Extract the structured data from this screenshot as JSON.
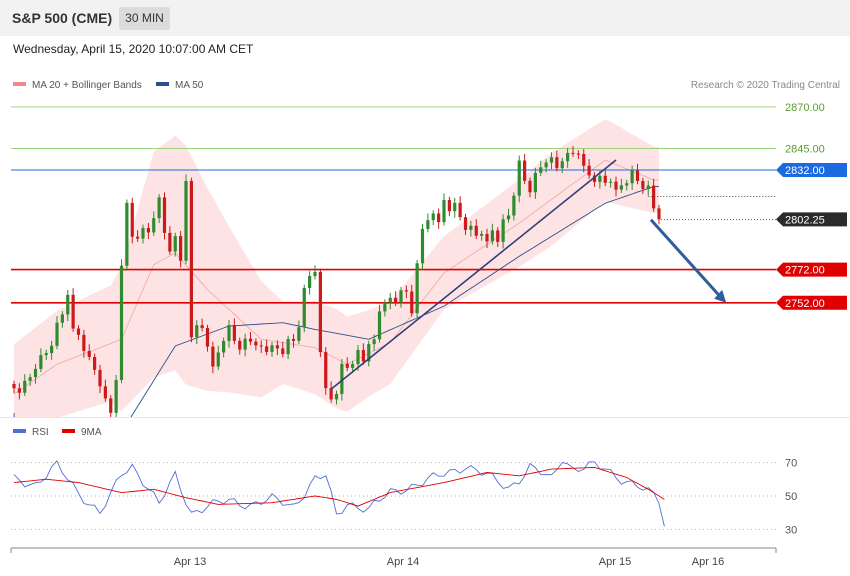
{
  "header": {
    "symbol": "S&P 500 (CME)",
    "timeframe": "30 MIN",
    "datetime": "Wednesday, April 15, 2020 10:07:00 AM CET",
    "copyright": "Research © 2020 Trading Central"
  },
  "colors": {
    "bollinger": "#f08a8a",
    "ma50": "#2b4f8c",
    "rsi": "#4f6fd6",
    "rsi_ma": "#e00000",
    "support": "#e00000",
    "resistance": "#8fcf6a",
    "pivot": "#1b6be0",
    "arrow": "#2e5d9e",
    "candle_up": "#2e8b2e",
    "candle_down": "#cc1a1a"
  },
  "chart_data": [
    {
      "type": "candlestick",
      "name": "price",
      "legend": [
        "MA 20 + Bollinger Bands",
        "MA 50"
      ],
      "ylim": [
        2620,
        2905
      ],
      "x_ticks": [
        "Apr 13",
        "Apr 14",
        "Apr 15",
        "Apr 16"
      ],
      "levels": [
        {
          "value": 2870.0,
          "label": "2870.00",
          "kind": "resistance"
        },
        {
          "value": 2845.0,
          "label": "2845.00",
          "kind": "resistance"
        },
        {
          "value": 2832.0,
          "label": "2832.00",
          "kind": "pivot"
        },
        {
          "value": 2772.0,
          "label": "2772.00",
          "kind": "support"
        },
        {
          "value": 2752.0,
          "label": "2752.00",
          "kind": "support"
        }
      ],
      "last_price": {
        "value": 2802.25,
        "label": "2802.25"
      },
      "bar_start": 0,
      "bar_count": 134,
      "trendline": [
        [
          59,
          2700
        ],
        [
          112,
          2838
        ]
      ],
      "forecast_arrow": [
        [
          118.5,
          2802
        ],
        [
          132.5,
          2752
        ]
      ],
      "close": [
        2700.5,
        2697.8,
        2705.0,
        2707.2,
        2712.2,
        2720.5,
        2721.7,
        2726.1,
        2740.0,
        2745.0,
        2756.8,
        2736.5,
        2732.7,
        2723.0,
        2719.4,
        2711.6,
        2701.7,
        2694.4,
        2685.7,
        2705.5,
        2774.3,
        2812.2,
        2791.8,
        2790.7,
        2797.1,
        2794.4,
        2803.0,
        2815.5,
        2794.1,
        2782.9,
        2792.2,
        2777.3,
        2825.4,
        2731.2,
        2738.5,
        2736.8,
        2725.6,
        2713.6,
        2722.1,
        2729.0,
        2738.6,
        2729.1,
        2723.8,
        2730.4,
        2728.6,
        2726.3,
        2725.8,
        2722.4,
        2726.4,
        2724.5,
        2721.1,
        2730.2,
        2729.1,
        2737.3,
        2760.9,
        2768.1,
        2770.6,
        2722.3,
        2700.6,
        2693.8,
        2697.1,
        2715.2,
        2712.8,
        2715.1,
        2723.6,
        2716.7,
        2727.1,
        2730.0,
        2746.8,
        2752.1,
        2755.0,
        2752.1,
        2759.5,
        2758.8,
        2745.7,
        2775.8,
        2796.5,
        2801.8,
        2805.8,
        2800.6,
        2813.9,
        2807.2,
        2812.2,
        2803.6,
        2795.9,
        2798.4,
        2792.4,
        2793.5,
        2789.0,
        2795.6,
        2788.7,
        2802.3,
        2804.6,
        2816.5,
        2837.7,
        2825.5,
        2818.6,
        2830.3,
        2833.6,
        2836.5,
        2839.7,
        2833.1,
        2837.3,
        2842.3,
        2841.9,
        2841.6,
        2834.6,
        2828.7,
        2824.8,
        2828.5,
        2824.3,
        2825.0,
        2820.2,
        2822.7,
        2824.0,
        2831.7,
        2825.4,
        2820.6,
        2822.6,
        2808.9,
        2802.3
      ],
      "open": [
        2703.1,
        2700.5,
        2697.8,
        2705.0,
        2707.2,
        2712.2,
        2720.5,
        2721.7,
        2726.1,
        2740.0,
        2745.0,
        2756.8,
        2736.5,
        2732.7,
        2723.0,
        2719.4,
        2711.6,
        2701.7,
        2694.4,
        2685.7,
        2705.5,
        2774.3,
        2812.2,
        2791.8,
        2790.7,
        2797.1,
        2794.4,
        2803.0,
        2815.5,
        2794.1,
        2782.9,
        2792.2,
        2777.3,
        2825.4,
        2731.2,
        2738.5,
        2736.8,
        2725.6,
        2713.6,
        2722.1,
        2729.0,
        2738.6,
        2729.1,
        2723.8,
        2730.4,
        2728.6,
        2726.3,
        2725.8,
        2722.4,
        2726.4,
        2724.5,
        2721.1,
        2730.2,
        2729.1,
        2737.3,
        2760.9,
        2768.1,
        2770.6,
        2722.3,
        2700.6,
        2693.8,
        2697.1,
        2715.2,
        2712.8,
        2715.1,
        2723.6,
        2716.7,
        2727.1,
        2730.0,
        2746.8,
        2752.1,
        2755.0,
        2752.1,
        2759.5,
        2758.8,
        2745.7,
        2775.8,
        2796.5,
        2801.8,
        2805.8,
        2800.6,
        2813.9,
        2807.2,
        2812.2,
        2803.6,
        2795.9,
        2798.4,
        2792.4,
        2793.5,
        2789.0,
        2795.6,
        2788.7,
        2802.3,
        2804.6,
        2816.5,
        2837.7,
        2825.5,
        2818.6,
        2830.3,
        2833.6,
        2836.5,
        2839.7,
        2833.1,
        2837.3,
        2842.3,
        2841.9,
        2841.6,
        2834.6,
        2828.7,
        2824.8,
        2828.5,
        2824.3,
        2825.0,
        2820.2,
        2822.7,
        2824.0,
        2831.7,
        2825.4,
        2820.6,
        2822.6,
        2808.9
      ],
      "ma50_anchors": [
        [
          0,
          2623
        ],
        [
          20,
          2674
        ],
        [
          30,
          2726
        ],
        [
          40,
          2738
        ],
        [
          50,
          2740
        ],
        [
          56,
          2736
        ],
        [
          66,
          2730
        ],
        [
          80,
          2750
        ],
        [
          94,
          2780
        ],
        [
          110,
          2812
        ],
        [
          119,
          2822
        ]
      ],
      "ma20_anchors": [
        [
          0,
          2697
        ],
        [
          8,
          2715
        ],
        [
          20,
          2730
        ],
        [
          26,
          2775
        ],
        [
          30,
          2782
        ],
        [
          36,
          2760
        ],
        [
          46,
          2730
        ],
        [
          56,
          2725
        ],
        [
          62,
          2715
        ],
        [
          70,
          2728
        ],
        [
          80,
          2770
        ],
        [
          94,
          2800
        ],
        [
          110,
          2838
        ],
        [
          119,
          2826
        ]
      ],
      "bb_width_anchors": [
        [
          0,
          30
        ],
        [
          18,
          35
        ],
        [
          26,
          68
        ],
        [
          32,
          72
        ],
        [
          40,
          50
        ],
        [
          50,
          25
        ],
        [
          60,
          30
        ],
        [
          66,
          26
        ],
        [
          80,
          22
        ],
        [
          100,
          28
        ],
        [
          112,
          24
        ],
        [
          119,
          20
        ]
      ]
    },
    {
      "type": "line",
      "name": "RSI",
      "legend": [
        "RSI",
        "9MA"
      ],
      "ylim": [
        25,
        80
      ],
      "y_ticks": [
        70,
        50,
        30
      ],
      "series_rsi_anchors": [
        [
          0,
          60
        ],
        [
          4,
          57
        ],
        [
          8,
          68
        ],
        [
          12,
          52
        ],
        [
          16,
          40
        ],
        [
          18,
          50
        ],
        [
          20,
          63
        ],
        [
          22,
          68
        ],
        [
          25,
          55
        ],
        [
          27,
          45
        ],
        [
          30,
          62
        ],
        [
          33,
          40
        ],
        [
          36,
          44
        ],
        [
          40,
          47
        ],
        [
          44,
          45
        ],
        [
          48,
          48
        ],
        [
          52,
          44
        ],
        [
          56,
          60
        ],
        [
          58,
          62
        ],
        [
          60,
          38
        ],
        [
          62,
          46
        ],
        [
          66,
          42
        ],
        [
          70,
          52
        ],
        [
          76,
          58
        ],
        [
          80,
          63
        ],
        [
          84,
          68
        ],
        [
          88,
          62
        ],
        [
          92,
          55
        ],
        [
          94,
          60
        ],
        [
          96,
          67
        ],
        [
          100,
          60
        ],
        [
          102,
          73
        ],
        [
          104,
          66
        ],
        [
          108,
          68
        ],
        [
          110,
          66
        ],
        [
          112,
          62
        ],
        [
          116,
          56
        ],
        [
          119,
          50
        ],
        [
          120,
          47
        ],
        [
          121,
          33
        ]
      ],
      "series_ma_anchors": [
        [
          0,
          58
        ],
        [
          6,
          60
        ],
        [
          12,
          58
        ],
        [
          20,
          52
        ],
        [
          26,
          54
        ],
        [
          32,
          49
        ],
        [
          38,
          45
        ],
        [
          48,
          46
        ],
        [
          56,
          50
        ],
        [
          60,
          48
        ],
        [
          64,
          44
        ],
        [
          70,
          52
        ],
        [
          80,
          58
        ],
        [
          88,
          64
        ],
        [
          94,
          62
        ],
        [
          100,
          66
        ],
        [
          108,
          67
        ],
        [
          114,
          61
        ],
        [
          118,
          54
        ],
        [
          121,
          48
        ]
      ]
    }
  ]
}
